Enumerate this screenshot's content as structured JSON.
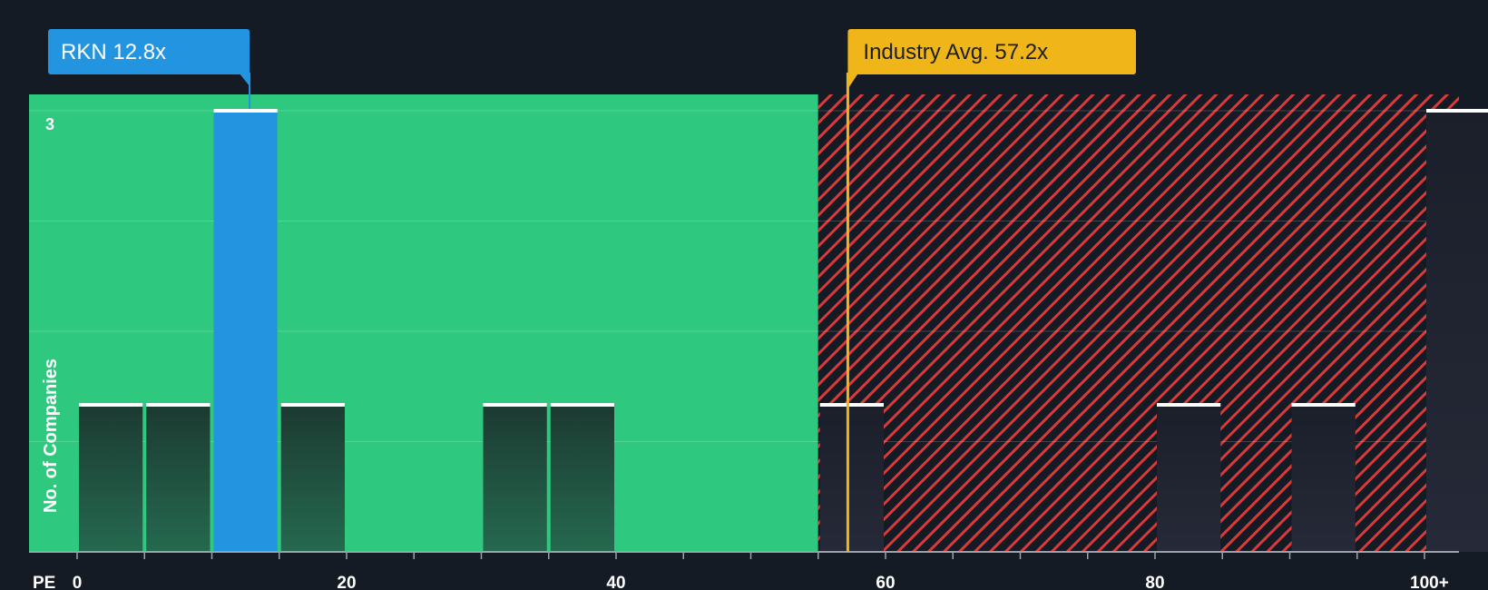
{
  "chart_data": {
    "type": "bar",
    "xlabel": "PE",
    "ylabel": "No. of Companies",
    "xlim": [
      0,
      102
    ],
    "ylim": [
      0,
      3.15
    ],
    "x_ticks": [
      {
        "value": 0,
        "label": "0"
      },
      {
        "value": 20,
        "label": "20"
      },
      {
        "value": 40,
        "label": "40"
      },
      {
        "value": 60,
        "label": "60"
      },
      {
        "value": 80,
        "label": "80"
      },
      {
        "value": 100,
        "label": "100+"
      }
    ],
    "y_ticks": [
      {
        "value": 3,
        "label": "3"
      }
    ],
    "bins": [
      {
        "x0": 0,
        "x1": 5,
        "count": 1
      },
      {
        "x0": 5,
        "x1": 10,
        "count": 1
      },
      {
        "x0": 10,
        "x1": 15,
        "count": 3,
        "highlight": true
      },
      {
        "x0": 15,
        "x1": 20,
        "count": 1
      },
      {
        "x0": 30,
        "x1": 35,
        "count": 1
      },
      {
        "x0": 35,
        "x1": 40,
        "count": 1
      },
      {
        "x0": 55,
        "x1": 60,
        "count": 1
      },
      {
        "x0": 80,
        "x1": 85,
        "count": 1
      },
      {
        "x0": 90,
        "x1": 95,
        "count": 1
      },
      {
        "x0": 100,
        "x1": 105,
        "count": 3
      }
    ],
    "fair_region_end": 55,
    "company": {
      "label": "RKN 12.8x",
      "value": 12.8
    },
    "industry": {
      "label": "Industry Avg. 57.2x",
      "value": 57.2
    },
    "colors": {
      "background": "#151b24",
      "fair_zone": "#2ec97e",
      "overvalued_stripe": "#d83a3a",
      "bar_dark": "#1f4f40",
      "highlight": "#2394e0",
      "industry": "#f0b619",
      "cap": "#ffffff"
    }
  }
}
